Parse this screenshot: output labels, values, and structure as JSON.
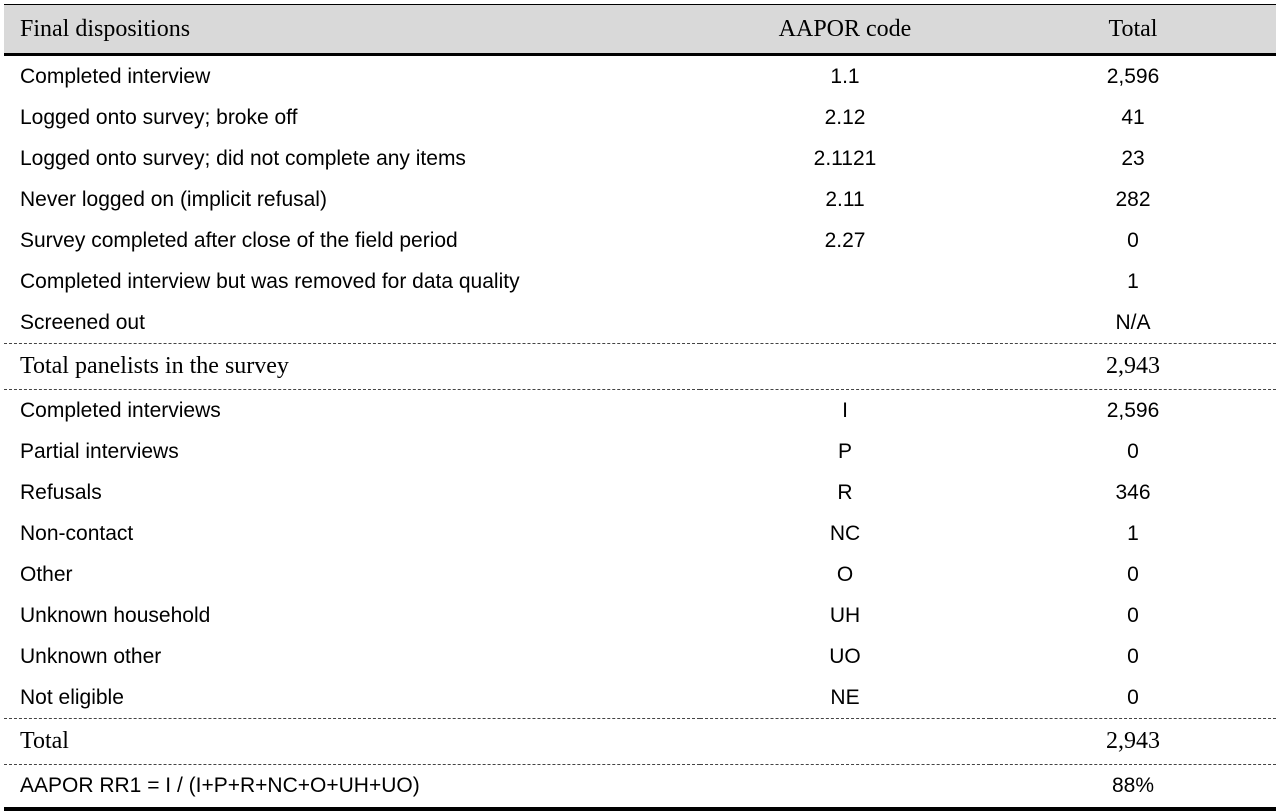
{
  "table": {
    "headers": [
      "Final dispositions",
      "AAPOR code",
      "Total"
    ],
    "rows": [
      {
        "label": "Completed interview",
        "code": "1.1",
        "total": "2,596"
      },
      {
        "label": "Logged onto survey; broke off",
        "code": "2.12",
        "total": "41"
      },
      {
        "label": "Logged onto survey; did not complete any items",
        "code": "2.1121",
        "total": "23"
      },
      {
        "label": "Never logged on (implicit refusal)",
        "code": "2.11",
        "total": "282"
      },
      {
        "label": "Survey completed after close of the field period",
        "code": "2.27",
        "total": "0"
      },
      {
        "label": "Completed interview but was removed for data quality",
        "code": "",
        "total": "1"
      },
      {
        "label": "Screened out",
        "code": "",
        "total": "N/A"
      },
      {
        "label": "Total panelists in the survey",
        "code": "",
        "total": "2,943",
        "style": "serif"
      },
      {
        "label": "Completed interviews",
        "code": "I",
        "total": "2,596"
      },
      {
        "label": "Partial interviews",
        "code": "P",
        "total": "0"
      },
      {
        "label": "Refusals",
        "code": "R",
        "total": "346"
      },
      {
        "label": "Non-contact",
        "code": "NC",
        "total": "1"
      },
      {
        "label": "Other",
        "code": "O",
        "total": "0"
      },
      {
        "label": "Unknown household",
        "code": "UH",
        "total": "0"
      },
      {
        "label": "Unknown other",
        "code": "UO",
        "total": "0"
      },
      {
        "label": "Not eligible",
        "code": "NE",
        "total": "0"
      },
      {
        "label": "Total",
        "code": "",
        "total": "2,943",
        "style": "serif"
      },
      {
        "label": "AAPOR RR1 = I / (I+P+R+NC+O+UH+UO)",
        "code": "",
        "total": "88%"
      }
    ]
  },
  "colors": {
    "header_bg": "#d9d9d9"
  }
}
